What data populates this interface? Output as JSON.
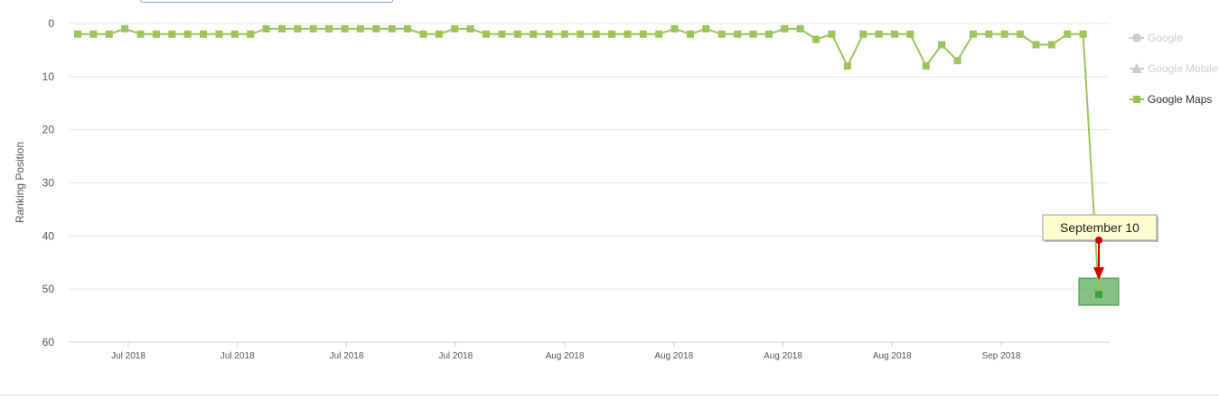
{
  "chart_data": {
    "type": "line",
    "ylabel": "Ranking Position",
    "ylim": [
      60,
      0
    ],
    "yticks": [
      0,
      10,
      20,
      30,
      40,
      50,
      60
    ],
    "x_tick_labels": [
      "Jul 2018",
      "Jul 2018",
      "Jul 2018",
      "Jul 2018",
      "Aug 2018",
      "Aug 2018",
      "Aug 2018",
      "Aug 2018",
      "Sep 2018"
    ],
    "grid": true,
    "legend_placement": "right",
    "series": [
      {
        "name": "Google Maps",
        "color": "#9cc45a",
        "marker": "square",
        "visible": true,
        "values": [
          2,
          2,
          2,
          1,
          2,
          2,
          2,
          2,
          2,
          2,
          2,
          2,
          1,
          1,
          1,
          1,
          1,
          1,
          1,
          1,
          1,
          1,
          2,
          2,
          1,
          1,
          2,
          2,
          2,
          2,
          2,
          2,
          2,
          2,
          2,
          2,
          2,
          2,
          1,
          2,
          1,
          2,
          2,
          2,
          2,
          1,
          1,
          3,
          2,
          8,
          2,
          2,
          2,
          2,
          8,
          4,
          7,
          2,
          2,
          2,
          2,
          4,
          4,
          2,
          2,
          51
        ]
      },
      {
        "name": "Google",
        "color": "#cccccc",
        "marker": "circle",
        "visible": false,
        "values": []
      },
      {
        "name": "Google Mobile",
        "color": "#cccccc",
        "marker": "triangle",
        "visible": false,
        "values": []
      }
    ],
    "annotations": [
      {
        "text": "September 10",
        "target_index": 65
      }
    ]
  }
}
